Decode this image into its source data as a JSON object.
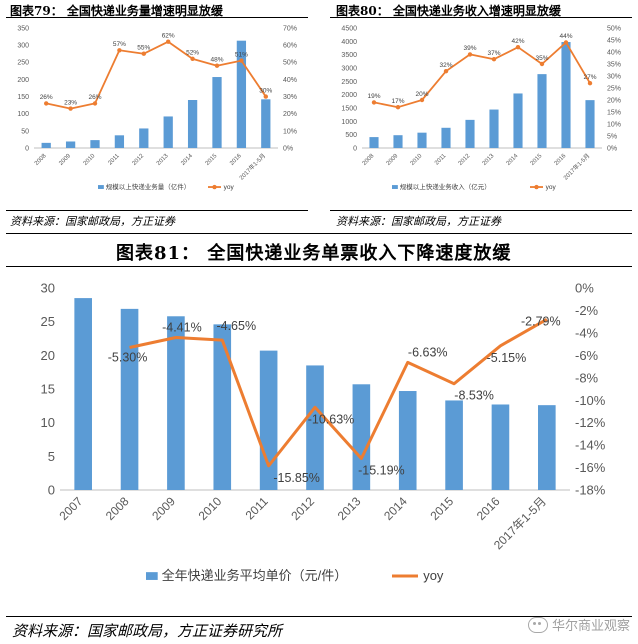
{
  "panels": {
    "p79": {
      "title": "图表79：  全国快递业务量增速明显放缓",
      "source": "资料来源：国家邮政局，方正证券"
    },
    "p80": {
      "title": "图表80：  全国快递业务收入增速明显放缓",
      "source": "资料来源：国家邮政局，方正证券"
    },
    "p81": {
      "title": "图表81：  全国快递业务单票收入下降速度放缓",
      "source": "资料来源：国家邮政局，方正证券研究所"
    }
  },
  "watermark": "华尔商业观察",
  "colors": {
    "bar": "#5b9bd5",
    "line": "#ed7d31",
    "grid": "#d9d9d9",
    "axis_text": "#595959"
  },
  "chart_data": [
    {
      "type": "bar",
      "title": "图表79：  全国快递业务量增速明显放缓",
      "categories": [
        "2008",
        "2009",
        "2010",
        "2011",
        "2012",
        "2013",
        "2014",
        "2015",
        "2016",
        "2017年1-5月"
      ],
      "series": [
        {
          "name": "规模以上快递业务量（亿件）",
          "type": "bar",
          "axis": "left",
          "values": [
            15,
            19,
            23,
            37,
            57,
            92,
            140,
            207,
            313,
            142
          ]
        },
        {
          "name": "yoy",
          "type": "line",
          "axis": "right",
          "values": [
            26,
            23,
            26,
            57,
            55,
            62,
            52,
            48,
            51,
            30
          ],
          "labels": [
            "26%",
            "23%",
            "26%",
            "57%",
            "55%",
            "62%",
            "52%",
            "48%",
            "51%",
            "30%"
          ]
        }
      ],
      "y_left": {
        "ticks": [
          0,
          50,
          100,
          150,
          200,
          250,
          300,
          350
        ],
        "ylim": [
          0,
          350
        ]
      },
      "y_right": {
        "ticks": [
          "0%",
          "10%",
          "20%",
          "30%",
          "40%",
          "50%",
          "60%",
          "70%"
        ],
        "ylim": [
          0,
          70
        ]
      },
      "grid": false,
      "legend": "bottom"
    },
    {
      "type": "bar",
      "title": "图表80：  全国快递业务收入增速明显放缓",
      "categories": [
        "2008",
        "2009",
        "2010",
        "2011",
        "2012",
        "2013",
        "2014",
        "2015",
        "2016",
        "2017年1-5月"
      ],
      "series": [
        {
          "name": "规模以上快递业务收入（亿元）",
          "type": "bar",
          "axis": "left",
          "values": [
            409,
            480,
            575,
            758,
            1055,
            1442,
            2045,
            2770,
            3974,
            1795
          ]
        },
        {
          "name": "yoy",
          "type": "line",
          "axis": "right",
          "values": [
            19,
            17,
            20,
            32,
            39,
            37,
            42,
            35,
            44,
            27
          ],
          "labels": [
            "19%",
            "17%",
            "20%",
            "32%",
            "39%",
            "37%",
            "42%",
            "35%",
            "44%",
            "27%"
          ]
        }
      ],
      "y_left": {
        "ticks": [
          0,
          500,
          1000,
          1500,
          2000,
          2500,
          3000,
          3500,
          4000,
          4500
        ],
        "ylim": [
          0,
          4500
        ]
      },
      "y_right": {
        "ticks": [
          "0%",
          "5%",
          "10%",
          "15%",
          "20%",
          "25%",
          "30%",
          "35%",
          "40%",
          "45%",
          "50%"
        ],
        "ylim": [
          0,
          50
        ]
      },
      "grid": false,
      "legend": "bottom"
    },
    {
      "type": "bar",
      "title": "图表81：  全国快递业务单票收入下降速度放缓",
      "categories": [
        "2007",
        "2008",
        "2009",
        "2010",
        "2011",
        "2012",
        "2013",
        "2014",
        "2015",
        "2016",
        "2017年1-5月"
      ],
      "series": [
        {
          "name": "全年快递业务平均单价（元/件）",
          "type": "bar",
          "axis": "left",
          "values": [
            28.5,
            26.9,
            25.8,
            24.6,
            20.7,
            18.5,
            15.7,
            14.7,
            13.3,
            12.7,
            12.6
          ]
        },
        {
          "name": "yoy",
          "type": "line",
          "axis": "right",
          "values": [
            null,
            -5.3,
            -4.41,
            -4.65,
            -15.85,
            -10.63,
            -15.19,
            -6.63,
            -8.53,
            -5.15,
            -2.79
          ],
          "labels": [
            "",
            "-5.30%",
            "-4.41%",
            "-4.65%",
            "-15.85%",
            "-10.63%",
            "-15.19%",
            "-6.63%",
            "-8.53%",
            "-5.15%",
            "-2.79%"
          ]
        }
      ],
      "y_left": {
        "ticks": [
          0,
          5,
          10,
          15,
          20,
          25,
          30
        ],
        "ylim": [
          0,
          30
        ]
      },
      "y_right": {
        "ticks": [
          "0%",
          "-2%",
          "-4%",
          "-6%",
          "-8%",
          "-10%",
          "-12%",
          "-14%",
          "-16%",
          "-18%"
        ],
        "ylim": [
          -18,
          0
        ]
      },
      "grid": false,
      "legend": "bottom"
    }
  ]
}
